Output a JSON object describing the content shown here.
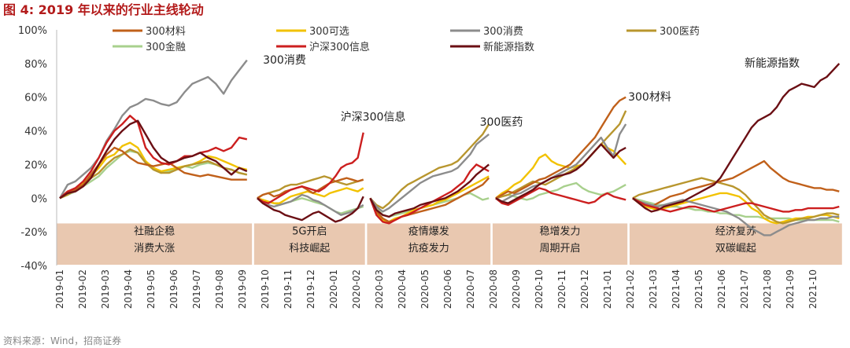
{
  "title": "图 4:  2019 年以来的行业主线轮动",
  "source": "资料来源：Wind，招商证券",
  "chart_data": {
    "type": "line",
    "ylim": [
      -40,
      100
    ],
    "y_ticks": [
      "100%",
      "80%",
      "60%",
      "40%",
      "20%",
      "0%",
      "-20%",
      "-40%"
    ],
    "y_tick_values": [
      100,
      80,
      60,
      40,
      20,
      0,
      -20,
      -40
    ],
    "x_ticks": [
      "2019-01",
      "2019-02",
      "2019-03",
      "2019-04",
      "2019-05",
      "2019-06",
      "2019-07",
      "2019-08",
      "2019-09",
      "2019-10",
      "2019-11",
      "2019-12",
      "2020-01",
      "2020-02",
      "2020-03",
      "2020-04",
      "2020-05",
      "2020-06",
      "2020-07",
      "2020-08",
      "2020-09",
      "2020-10",
      "2020-11",
      "2020-12",
      "2021-01",
      "2021-02",
      "2021-03",
      "2021-04",
      "2021-05",
      "2021-06",
      "2021-07",
      "2021-08",
      "2021-09",
      "2021-10"
    ],
    "legend": [
      "300材料",
      "300可选",
      "300消费",
      "300医药",
      "300金融",
      "沪深300信息",
      "新能源指数"
    ],
    "series_colors": [
      "#c0601a",
      "#f2c200",
      "#8c8c8c",
      "#b8962e",
      "#a8d08d",
      "#cc1f1f",
      "#6b0f14"
    ],
    "annotations": [
      {
        "text": "300消费",
        "x": 8.9,
        "y": 80
      },
      {
        "text": "沪深300信息",
        "x": 12.3,
        "y": 46
      },
      {
        "text": "300医药",
        "x": 18.4,
        "y": 43
      },
      {
        "text": "300材料",
        "x": 24.9,
        "y": 58
      },
      {
        "text": "新能源指数",
        "x": 30.0,
        "y": 78
      }
    ],
    "phases": [
      {
        "label1": "社融企稳",
        "label2": "消费大涨",
        "x0": 0,
        "x1": 8.35
      },
      {
        "label1": "5G开启",
        "label2": "科技崛起",
        "x0": 8.65,
        "x1": 13.3
      },
      {
        "label1": "疫情爆发",
        "label2": "抗疫发力",
        "x0": 13.6,
        "x1": 18.8
      },
      {
        "label1": "稳增发力",
        "label2": "周期开启",
        "x0": 19.1,
        "x1": 24.8
      },
      {
        "label1": "经济复苏",
        "label2": "双碳崛起",
        "x0": 25.1,
        "x1": 34.2
      }
    ],
    "segments": [
      {
        "x0": 0,
        "x1": 8.2,
        "series": [
          [
            0,
            3,
            5,
            8,
            14,
            20,
            26,
            30,
            28,
            24,
            21,
            20,
            19,
            20,
            21,
            18,
            15,
            14,
            13,
            14,
            13,
            12,
            11,
            11,
            11
          ],
          [
            0,
            4,
            5,
            9,
            13,
            18,
            24,
            26,
            31,
            33,
            30,
            22,
            18,
            16,
            17,
            18,
            19,
            20,
            22,
            25,
            24,
            22,
            20,
            18,
            17
          ],
          [
            0,
            8,
            10,
            14,
            18,
            24,
            34,
            41,
            49,
            54,
            56,
            59,
            58,
            56,
            55,
            57,
            63,
            68,
            70,
            72,
            68,
            62,
            70,
            76,
            82
          ],
          [
            0,
            2,
            5,
            8,
            12,
            15,
            20,
            24,
            26,
            29,
            27,
            21,
            17,
            15,
            15,
            17,
            19,
            20,
            21,
            22,
            20,
            18,
            17,
            15,
            14
          ],
          [
            0,
            2,
            4,
            7,
            10,
            13,
            18,
            22,
            26,
            28,
            27,
            22,
            17,
            15,
            16,
            18,
            19,
            18,
            20,
            21,
            20,
            18,
            17,
            15,
            14
          ],
          [
            0,
            4,
            6,
            10,
            16,
            24,
            33,
            40,
            44,
            49,
            45,
            30,
            24,
            21,
            20,
            22,
            25,
            25,
            27,
            28,
            30,
            28,
            30,
            36,
            35
          ],
          [
            0,
            3,
            4,
            7,
            12,
            20,
            28,
            35,
            40,
            44,
            46,
            38,
            30,
            24,
            21,
            22,
            24,
            25,
            27,
            24,
            22,
            18,
            14,
            18,
            16
          ]
        ]
      },
      {
        "x0": 8.65,
        "x1": 13.3,
        "series": [
          [
            0,
            2,
            3,
            1,
            2,
            4,
            5,
            6,
            7,
            5,
            3,
            5,
            7,
            9,
            10,
            11,
            12,
            11,
            10,
            11
          ],
          [
            0,
            -1,
            -2,
            -3,
            -3,
            -1,
            1,
            2,
            3,
            4,
            3,
            2,
            1,
            3,
            4,
            5,
            6,
            5,
            4,
            6
          ],
          [
            0,
            -2,
            -4,
            -5,
            -4,
            -3,
            -2,
            0,
            2,
            1,
            -1,
            -2,
            -4,
            -6,
            -8,
            -10,
            -9,
            -8,
            -6,
            -4
          ],
          [
            0,
            2,
            3,
            4,
            5,
            7,
            8,
            8,
            9,
            10,
            11,
            12,
            13,
            12,
            10,
            9,
            8,
            9,
            10,
            11
          ],
          [
            0,
            -1,
            -2,
            -3,
            -4,
            -3,
            -2,
            -1,
            0,
            -1,
            -2,
            -3,
            -4,
            -6,
            -8,
            -9,
            -8,
            -7,
            -6,
            -5
          ],
          [
            0,
            -2,
            -3,
            -1,
            1,
            3,
            5,
            6,
            7,
            6,
            5,
            4,
            6,
            9,
            13,
            18,
            20,
            21,
            24,
            39
          ],
          [
            0,
            -3,
            -5,
            -7,
            -8,
            -10,
            -11,
            -12,
            -13,
            -11,
            -9,
            -8,
            -10,
            -12,
            -14,
            -13,
            -11,
            -9,
            -6,
            1
          ]
        ]
      },
      {
        "x0": 13.6,
        "x1": 18.8,
        "series": [
          [
            0,
            -8,
            -12,
            -14,
            -13,
            -11,
            -10,
            -9,
            -8,
            -7,
            -6,
            -5,
            -4,
            -2,
            0,
            2,
            4,
            6,
            8,
            12
          ],
          [
            0,
            -9,
            -13,
            -14,
            -12,
            -11,
            -9,
            -7,
            -6,
            -5,
            -4,
            -2,
            -1,
            1,
            3,
            5,
            7,
            9,
            11,
            13
          ],
          [
            0,
            -5,
            -8,
            -6,
            -3,
            0,
            3,
            6,
            9,
            11,
            13,
            14,
            15,
            16,
            18,
            22,
            26,
            32,
            35,
            38
          ],
          [
            0,
            -4,
            -6,
            -3,
            1,
            5,
            8,
            10,
            12,
            14,
            16,
            18,
            19,
            20,
            22,
            26,
            30,
            34,
            38,
            44
          ],
          [
            0,
            -6,
            -10,
            -11,
            -10,
            -9,
            -8,
            -7,
            -6,
            -5,
            -4,
            -3,
            -2,
            -1,
            0,
            2,
            3,
            1,
            -1,
            0
          ],
          [
            0,
            -10,
            -14,
            -15,
            -13,
            -11,
            -10,
            -8,
            -6,
            -4,
            -2,
            0,
            2,
            4,
            7,
            10,
            16,
            20,
            18,
            16
          ],
          [
            0,
            -7,
            -10,
            -11,
            -9,
            -8,
            -7,
            -6,
            -4,
            -3,
            -2,
            -1,
            0,
            2,
            4,
            7,
            10,
            14,
            17,
            20
          ]
        ]
      },
      {
        "x0": 19.1,
        "x1": 24.8,
        "series": [
          [
            0,
            2,
            4,
            3,
            5,
            7,
            9,
            11,
            12,
            14,
            16,
            18,
            20,
            24,
            28,
            32,
            36,
            42,
            48,
            54,
            58,
            60
          ],
          [
            0,
            3,
            5,
            8,
            10,
            14,
            18,
            24,
            26,
            22,
            20,
            19,
            18,
            19,
            20,
            24,
            28,
            32,
            30,
            28,
            24,
            20
          ],
          [
            0,
            -2,
            0,
            2,
            3,
            5,
            7,
            8,
            10,
            12,
            14,
            16,
            18,
            20,
            24,
            28,
            32,
            36,
            30,
            25,
            38,
            44
          ],
          [
            0,
            1,
            2,
            4,
            6,
            8,
            10,
            9,
            8,
            10,
            12,
            14,
            16,
            18,
            20,
            24,
            28,
            32,
            36,
            40,
            44,
            52
          ],
          [
            0,
            1,
            2,
            1,
            0,
            -1,
            0,
            2,
            3,
            4,
            5,
            7,
            8,
            9,
            6,
            4,
            3,
            2,
            3,
            4,
            6,
            8
          ],
          [
            0,
            -3,
            -4,
            -2,
            0,
            2,
            4,
            6,
            5,
            3,
            2,
            1,
            0,
            -1,
            -2,
            -3,
            -2,
            1,
            3,
            1,
            0,
            -1
          ],
          [
            0,
            -2,
            -3,
            -1,
            1,
            3,
            5,
            8,
            10,
            12,
            13,
            14,
            15,
            17,
            20,
            24,
            28,
            32,
            28,
            24,
            28,
            30
          ]
        ]
      },
      {
        "x0": 25.1,
        "x1": 34.15,
        "series": [
          [
            0,
            -2,
            -4,
            -5,
            -3,
            -1,
            1,
            2,
            3,
            5,
            6,
            7,
            8,
            9,
            10,
            11,
            12,
            14,
            16,
            18,
            20,
            22,
            18,
            15,
            12,
            10,
            9,
            8,
            7,
            6,
            6,
            5,
            5,
            4
          ],
          [
            0,
            -3,
            -5,
            -6,
            -7,
            -6,
            -5,
            -4,
            -3,
            -2,
            -1,
            0,
            1,
            2,
            3,
            3,
            2,
            1,
            -2,
            -6,
            -8,
            -12,
            -14,
            -15,
            -14,
            -13,
            -12,
            -12,
            -11,
            -11,
            -10,
            -10,
            -11,
            -12
          ],
          [
            0,
            -2,
            -3,
            -4,
            -5,
            -4,
            -3,
            -2,
            -1,
            -2,
            -3,
            -4,
            -5,
            -6,
            -7,
            -8,
            -10,
            -12,
            -15,
            -18,
            -20,
            -22,
            -22,
            -20,
            -18,
            -16,
            -15,
            -14,
            -13,
            -13,
            -12,
            -12,
            -11,
            -11
          ],
          [
            0,
            2,
            3,
            4,
            5,
            6,
            7,
            8,
            9,
            10,
            11,
            12,
            11,
            10,
            9,
            8,
            7,
            5,
            2,
            -2,
            -6,
            -10,
            -12,
            -14,
            -15,
            -14,
            -13,
            -12,
            -12,
            -11,
            -10,
            -9,
            -9,
            -10
          ],
          [
            0,
            -1,
            -2,
            -3,
            -4,
            -4,
            -5,
            -5,
            -6,
            -6,
            -7,
            -7,
            -8,
            -8,
            -9,
            -9,
            -10,
            -10,
            -11,
            -11,
            -11,
            -12,
            -12,
            -12,
            -12,
            -12,
            -13,
            -13,
            -13,
            -13,
            -13,
            -13,
            -13,
            -14
          ],
          [
            0,
            -2,
            -4,
            -5,
            -6,
            -7,
            -8,
            -7,
            -6,
            -5,
            -5,
            -6,
            -7,
            -8,
            -7,
            -6,
            -5,
            -4,
            -3,
            -3,
            -4,
            -5,
            -6,
            -7,
            -8,
            -8,
            -7,
            -7,
            -6,
            -6,
            -6,
            -6,
            -6,
            -5
          ],
          [
            0,
            -3,
            -6,
            -8,
            -7,
            -5,
            -4,
            -3,
            -2,
            0,
            2,
            4,
            6,
            8,
            12,
            18,
            24,
            30,
            36,
            42,
            46,
            48,
            50,
            54,
            60,
            64,
            66,
            68,
            67,
            66,
            70,
            72,
            76,
            80
          ]
        ]
      }
    ]
  }
}
